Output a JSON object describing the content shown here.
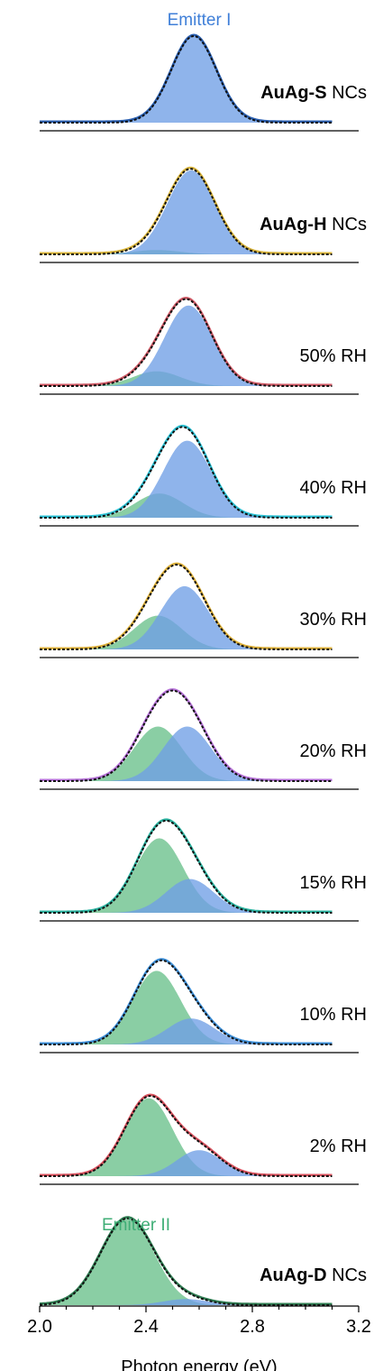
{
  "chart_data": {
    "type": "area",
    "xlabel": "Photon energy (eV)",
    "xlim": [
      2.0,
      3.2
    ],
    "x_ticks": [
      "2.0",
      "2.4",
      "2.8",
      "3.2"
    ],
    "x_fit_range": [
      2.0,
      3.1
    ],
    "emitter_labels": {
      "emitter1": "Emitter I",
      "emitter2": "Emitter II"
    },
    "colors": {
      "emitter1_fill": "#6f9fe6",
      "emitter2_fill": "#7dc99a",
      "overlap_fill": "#5b98c8",
      "emitter1_label": "#3f7fd8",
      "emitter2_label": "#3fae76",
      "fit_line": "#111111",
      "baseline": "#000000"
    },
    "panels": [
      {
        "label_bold": "AuAg-S",
        "label_rest": " NCs",
        "data_color": "#2a5fb0",
        "emitter1": {
          "center": 2.58,
          "width": 0.085,
          "amplitude": 1.0
        },
        "emitter2": {
          "center": 2.45,
          "width": 0.09,
          "amplitude": 0.0
        }
      },
      {
        "label_bold": "AuAg-H",
        "label_rest": " NCs",
        "data_color": "#d9b43a",
        "emitter1": {
          "center": 2.57,
          "width": 0.09,
          "amplitude": 0.97
        },
        "emitter2": {
          "center": 2.44,
          "width": 0.09,
          "amplitude": 0.05
        }
      },
      {
        "label_bold": "",
        "label_rest": "50% RH",
        "data_color": "#d05a66",
        "emitter1": {
          "center": 2.56,
          "width": 0.09,
          "amplitude": 0.93
        },
        "emitter2": {
          "center": 2.44,
          "width": 0.09,
          "amplitude": 0.17
        }
      },
      {
        "label_bold": "",
        "label_rest": "40% RH",
        "data_color": "#2bc1d4",
        "emitter1": {
          "center": 2.555,
          "width": 0.09,
          "amplitude": 0.89
        },
        "emitter2": {
          "center": 2.45,
          "width": 0.09,
          "amplitude": 0.28
        }
      },
      {
        "label_bold": "",
        "label_rest": "30% RH",
        "data_color": "#e0b33c",
        "emitter1": {
          "center": 2.545,
          "width": 0.09,
          "amplitude": 0.73
        },
        "emitter2": {
          "center": 2.445,
          "width": 0.09,
          "amplitude": 0.39
        }
      },
      {
        "label_bold": "",
        "label_rest": "20% RH",
        "data_color": "#b672d8",
        "emitter1": {
          "center": 2.555,
          "width": 0.09,
          "amplitude": 0.63
        },
        "emitter2": {
          "center": 2.445,
          "width": 0.09,
          "amplitude": 0.63
        }
      },
      {
        "label_bold": "",
        "label_rest": "15% RH",
        "data_color": "#2bb3a0",
        "emitter1": {
          "center": 2.565,
          "width": 0.09,
          "amplitude": 0.39
        },
        "emitter2": {
          "center": 2.45,
          "width": 0.09,
          "amplitude": 0.86
        }
      },
      {
        "label_bold": "",
        "label_rest": "10% RH",
        "data_color": "#3d8fd8",
        "emitter1": {
          "center": 2.57,
          "width": 0.09,
          "amplitude": 0.3
        },
        "emitter2": {
          "center": 2.44,
          "width": 0.09,
          "amplitude": 0.85
        }
      },
      {
        "label_bold": "",
        "label_rest": "2% RH",
        "data_color": "#d9525e",
        "emitter1": {
          "center": 2.6,
          "width": 0.085,
          "amplitude": 0.3
        },
        "emitter2": {
          "center": 2.41,
          "width": 0.09,
          "amplitude": 0.9
        }
      },
      {
        "label_bold": "AuAg-D",
        "label_rest": " NCs",
        "data_color": "#2f7d52",
        "emitter1": {
          "center": 2.55,
          "width": 0.085,
          "amplitude": 0.07
        },
        "emitter2": {
          "center": 2.33,
          "width": 0.1,
          "amplitude": 1.0
        }
      }
    ]
  }
}
